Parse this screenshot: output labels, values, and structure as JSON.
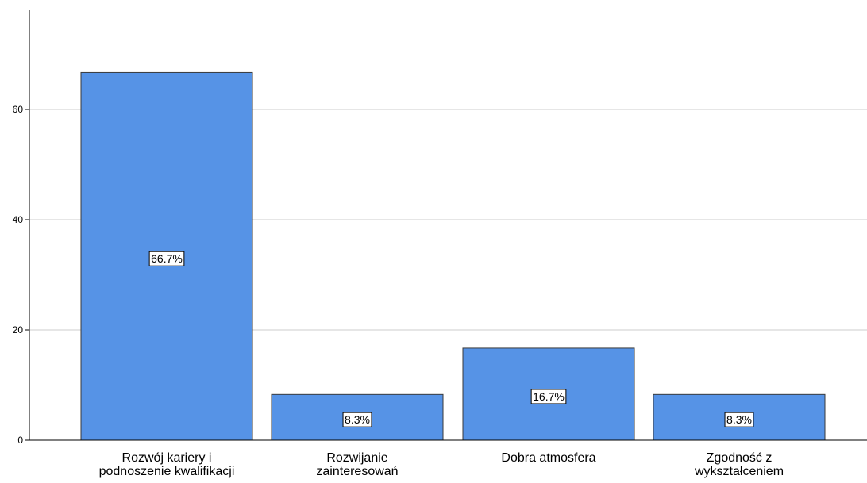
{
  "chart_data": {
    "type": "bar",
    "title": "",
    "xlabel": "",
    "ylabel": "",
    "ylim": [
      0,
      80
    ],
    "yticks": [
      0,
      20,
      40,
      60
    ],
    "grid": true,
    "categories": [
      [
        "Rozwój kariery i",
        "podnoszenie kwalifikacji"
      ],
      [
        "Rozwijanie",
        "zainteresowań"
      ],
      [
        "Dobra atmosfera"
      ],
      [
        "Zgodność z",
        "wykształceniem"
      ]
    ],
    "values": [
      66.7,
      8.3,
      16.7,
      8.3
    ],
    "data_labels": [
      "66.7%",
      "8.3%",
      "16.7%",
      "8.3%"
    ],
    "colors": {
      "bar_fill": "#5693e6",
      "bar_stroke": "#3a3a3a",
      "grid": "#cccccc",
      "axis": "#000000",
      "label_box_fill": "#ffffff",
      "label_box_stroke": "#000000"
    }
  }
}
